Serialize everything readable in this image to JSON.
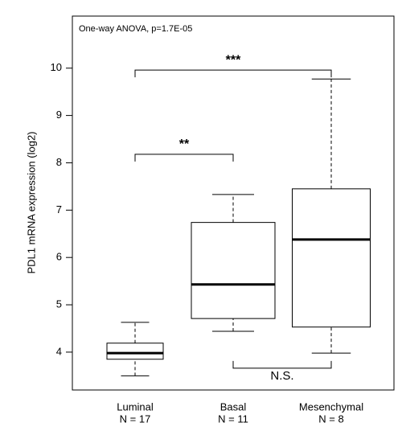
{
  "chart_data": {
    "type": "box",
    "annotation": "One-way ANOVA, p=1.7E-05",
    "y_label": "PDL1 mRNA expression (log2)",
    "categories": [
      "Luminal",
      "Basal",
      "Mesenchymal"
    ],
    "n_labels": [
      "N = 17",
      "N = 11",
      "N = 8"
    ],
    "min": [
      3.5,
      4.44,
      3.98
    ],
    "q1": [
      3.85,
      4.71,
      4.53
    ],
    "median": [
      3.98,
      5.43,
      6.38
    ],
    "q3": [
      4.19,
      6.74,
      7.45
    ],
    "max": [
      4.63,
      7.33,
      9.77
    ],
    "ylim": [
      3.2,
      11.1
    ],
    "yticks": [
      4,
      5,
      6,
      7,
      8,
      9,
      10
    ],
    "significance": [
      {
        "text": "***",
        "from": 0,
        "to": 2,
        "y": 9.96
      },
      {
        "text": "**",
        "from": 0,
        "to": 1,
        "y": 8.18
      },
      {
        "text": "N.S.",
        "from": 1,
        "to": 2,
        "y": 3.66
      }
    ]
  }
}
